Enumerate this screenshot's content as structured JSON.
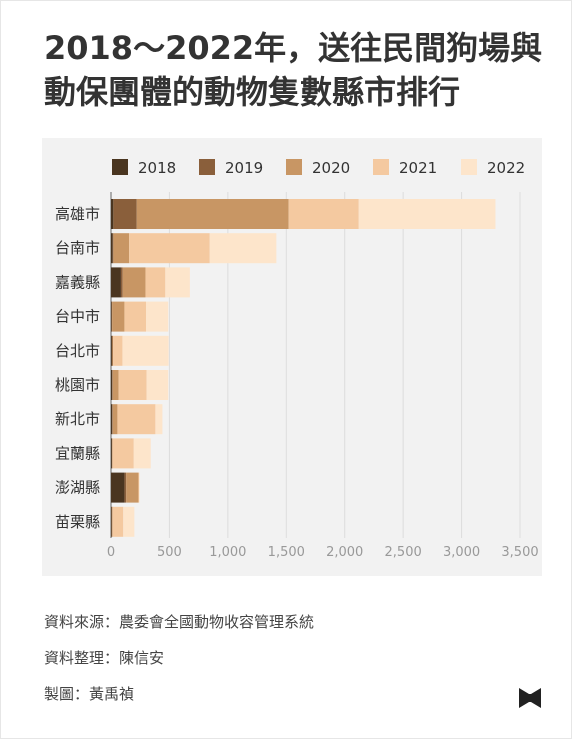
{
  "title": {
    "line1": "2018～2022年，送往民間狗場與",
    "line2": "動保團體的動物隻數縣市排行"
  },
  "colors": {
    "2018": "#4a3520",
    "2019": "#8a5f3b",
    "2020": "#c89664",
    "2021": "#f4c9a0",
    "2022": "#fde5cb"
  },
  "chart_data": {
    "type": "bar",
    "orientation": "horizontal",
    "stacked": true,
    "categories": [
      "高雄市",
      "台南市",
      "嘉義縣",
      "台中市",
      "台北市",
      "桃園市",
      "新北市",
      "宜蘭縣",
      "澎湖縣",
      "苗栗縣"
    ],
    "series": [
      {
        "name": "2018",
        "values": [
          20,
          15,
          85,
          5,
          8,
          10,
          10,
          8,
          115,
          5
        ]
      },
      {
        "name": "2019",
        "values": [
          200,
          5,
          15,
          5,
          5,
          5,
          5,
          2,
          15,
          5
        ]
      },
      {
        "name": "2020",
        "values": [
          1300,
          135,
          195,
          105,
          5,
          50,
          40,
          5,
          105,
          5
        ]
      },
      {
        "name": "2021",
        "values": [
          600,
          690,
          170,
          185,
          80,
          240,
          325,
          180,
          5,
          90
        ]
      },
      {
        "name": "2022",
        "values": [
          1170,
          570,
          210,
          190,
          395,
          185,
          60,
          145,
          5,
          95
        ]
      }
    ],
    "xlim": [
      0,
      3500
    ],
    "xticks": [
      0,
      500,
      1000,
      1500,
      2000,
      2500,
      3000,
      3500
    ],
    "xtick_labels": [
      "0",
      "500",
      "1,000",
      "1,500",
      "2,000",
      "2,500",
      "3,000",
      "3,500"
    ],
    "grid": true,
    "legend_position": "top"
  },
  "source": {
    "data_source": "資料來源：農委會全國動物收容管理系統",
    "compiled_by": "資料整理：陳信安",
    "designed_by": "製圖：黃禹禎"
  },
  "logo": {
    "icon": "bowtie-logo-icon",
    "color": "#222222"
  }
}
